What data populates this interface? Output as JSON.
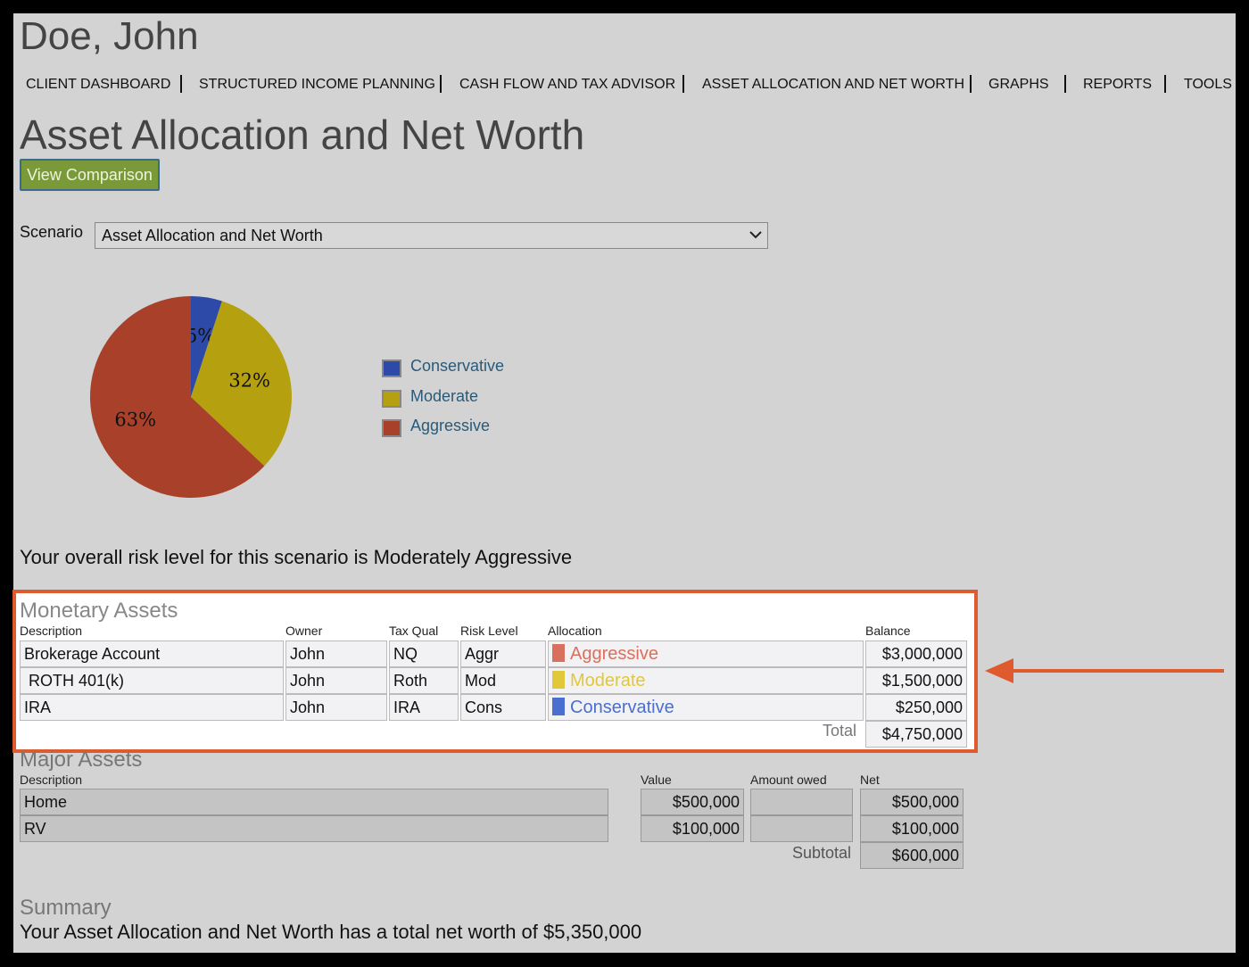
{
  "header": {
    "client_name": "Doe, John"
  },
  "nav": [
    "CLIENT DASHBOARD",
    "STRUCTURED INCOME PLANNING",
    "CASH FLOW AND TAX ADVISOR",
    "ASSET ALLOCATION AND NET WORTH",
    "GRAPHS",
    "REPORTS",
    "TOOLS"
  ],
  "page_title": "Asset Allocation and Net Worth",
  "button": "View Comparison",
  "scenario": {
    "label": "Scenario",
    "selected": "Asset Allocation and Net Worth"
  },
  "chart_data": {
    "type": "pie",
    "categories": [
      "Conservative",
      "Moderate",
      "Aggressive"
    ],
    "values": [
      5,
      32,
      63
    ],
    "value_labels": [
      "5%",
      "32%",
      "63%"
    ],
    "colors": [
      "#2e4aa8",
      "#b5a010",
      "#a8402a"
    ]
  },
  "risk_statement": "Your overall risk level for this scenario is Moderately Aggressive",
  "monetary_assets": {
    "title": "Monetary Assets",
    "columns": [
      "Description",
      "Owner",
      "Tax Qual",
      "Risk Level",
      "Allocation",
      "Balance"
    ],
    "rows": [
      [
        "Brokerage Account",
        "John",
        "NQ",
        "Aggr",
        "Aggressive",
        "$3,000,000"
      ],
      [
        "ROTH 401(k)",
        "John",
        "Roth",
        "Mod",
        "Moderate",
        "$1,500,000"
      ],
      [
        "IRA",
        "John",
        "IRA",
        "Cons",
        "Conservative",
        "$250,000"
      ]
    ],
    "total_label": "Total",
    "total": "$4,750,000"
  },
  "major_assets": {
    "title": "Major Assets",
    "columns": [
      "Description",
      "Value",
      "Amount owed",
      "Net"
    ],
    "rows": [
      {
        "description": "Home",
        "value": "$500,000",
        "net": "$500,000"
      },
      {
        "description": "RV",
        "value": "$100,000",
        "net": "$100,000"
      }
    ],
    "subtotal_label": "Subtotal",
    "subtotal": "$600,000"
  },
  "summary": {
    "title": "Summary",
    "text": "Your Asset Allocation and Net Worth has a total net worth of $5,350,000"
  }
}
